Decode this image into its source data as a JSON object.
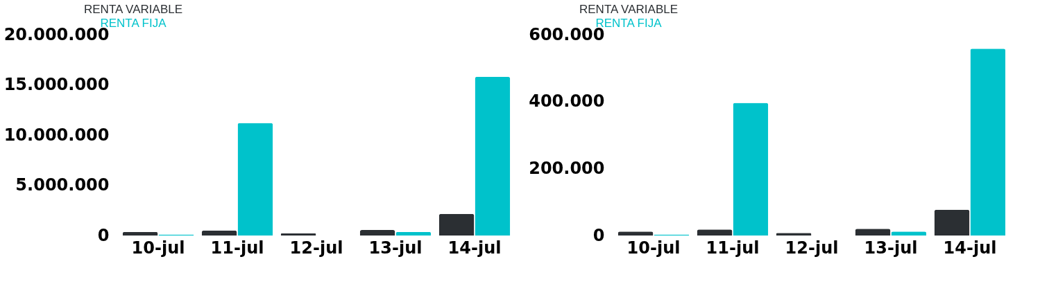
{
  "chart_data": [
    {
      "type": "bar",
      "categories": [
        "10-jul",
        "11-jul",
        "12-jul",
        "13-jul",
        "14-jul"
      ],
      "series": [
        {
          "name": "RENTA VARIABLE",
          "color": "#2b2f33",
          "values": [
            350000,
            500000,
            200000,
            550000,
            2150000
          ]
        },
        {
          "name": "RENTA FIJA",
          "color": "#00c2cb",
          "values": [
            100000,
            11200000,
            0,
            350000,
            15800000
          ]
        }
      ],
      "ylim": [
        0,
        20000000
      ],
      "yticks": [
        {
          "value": 0,
          "label": "0"
        },
        {
          "value": 5000000,
          "label": "5.000.000"
        },
        {
          "value": 10000000,
          "label": "10.000.000"
        },
        {
          "value": 15000000,
          "label": "15.000.000"
        },
        {
          "value": 20000000,
          "label": "20.000.000"
        }
      ],
      "grid": false,
      "legend": "top"
    },
    {
      "type": "bar",
      "categories": [
        "10-jul",
        "11-jul",
        "12-jul",
        "13-jul",
        "14-jul"
      ],
      "series": [
        {
          "name": "RENTA VARIABLE",
          "color": "#2b2f33",
          "values": [
            12000,
            18000,
            8000,
            20000,
            77000
          ]
        },
        {
          "name": "RENTA FIJA",
          "color": "#00c2cb",
          "values": [
            3000,
            396000,
            0,
            12000,
            558000
          ]
        }
      ],
      "ylim": [
        0,
        600000
      ],
      "yticks": [
        {
          "value": 0,
          "label": "0"
        },
        {
          "value": 200000,
          "label": "200.000"
        },
        {
          "value": 400000,
          "label": "400.000"
        },
        {
          "value": 600000,
          "label": "600.000"
        }
      ],
      "grid": false,
      "legend": "top"
    }
  ]
}
